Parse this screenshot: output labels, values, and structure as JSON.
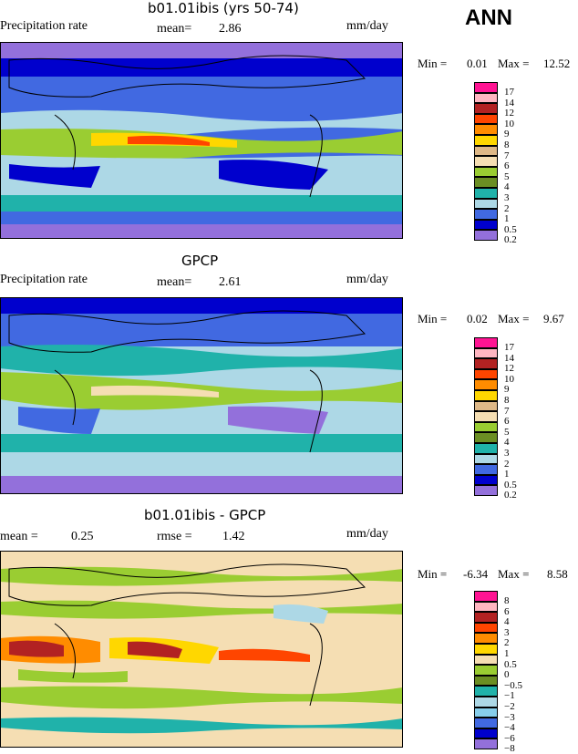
{
  "season": "ANN",
  "panels": [
    {
      "title": "b01.01ibis (yrs 50-74)",
      "left_label": "Precipitation rate",
      "stat1_label": "mean=",
      "stat1_value": "2.86",
      "units": "mm/day",
      "min_label": "Min =",
      "min_value": "0.01",
      "max_label": "Max =",
      "max_value": "12.52",
      "legend": [
        "17",
        "14",
        "12",
        "10",
        "9",
        "8",
        "7",
        "6",
        "5",
        "4",
        "3",
        "2",
        "1",
        "0.5",
        "0.2"
      ]
    },
    {
      "title": "GPCP",
      "left_label": "Precipitation rate",
      "stat1_label": "mean=",
      "stat1_value": "2.61",
      "units": "mm/day",
      "min_label": "Min =",
      "min_value": "0.02",
      "max_label": "Max =",
      "max_value": "9.67",
      "legend": [
        "17",
        "14",
        "12",
        "10",
        "9",
        "8",
        "7",
        "6",
        "5",
        "4",
        "3",
        "2",
        "1",
        "0.5",
        "0.2"
      ]
    },
    {
      "title": "b01.01ibis - GPCP",
      "stat1_label": "mean =",
      "stat1_value": "0.25",
      "stat2_label": "rmse =",
      "stat2_value": "1.42",
      "units": "mm/day",
      "min_label": "Min =",
      "min_value": "-6.34",
      "max_label": "Max =",
      "max_value": "8.58",
      "legend": [
        "8",
        "6",
        "4",
        "3",
        "2",
        "1",
        "0.5",
        "0",
        "−0.5",
        "−1",
        "−2",
        "−3",
        "−4",
        "−6",
        "−8"
      ]
    }
  ],
  "colors": {
    "precip": [
      "#ff1493",
      "#ffb6c1",
      "#b22222",
      "#ff4500",
      "#ff8c00",
      "#ffd700",
      "#deb887",
      "#f5deb3",
      "#9acd32",
      "#6b8e23",
      "#20b2aa",
      "#add8e6",
      "#4169e1",
      "#0000cd",
      "#9370db"
    ],
    "diff": [
      "#ff1493",
      "#ffb6c1",
      "#b22222",
      "#ff4500",
      "#ff8c00",
      "#ffd700",
      "#f5deb3",
      "#9acd32",
      "#6b8e23",
      "#20b2aa",
      "#add8e6",
      "#87ceeb",
      "#4169e1",
      "#0000cd",
      "#9370db"
    ]
  }
}
